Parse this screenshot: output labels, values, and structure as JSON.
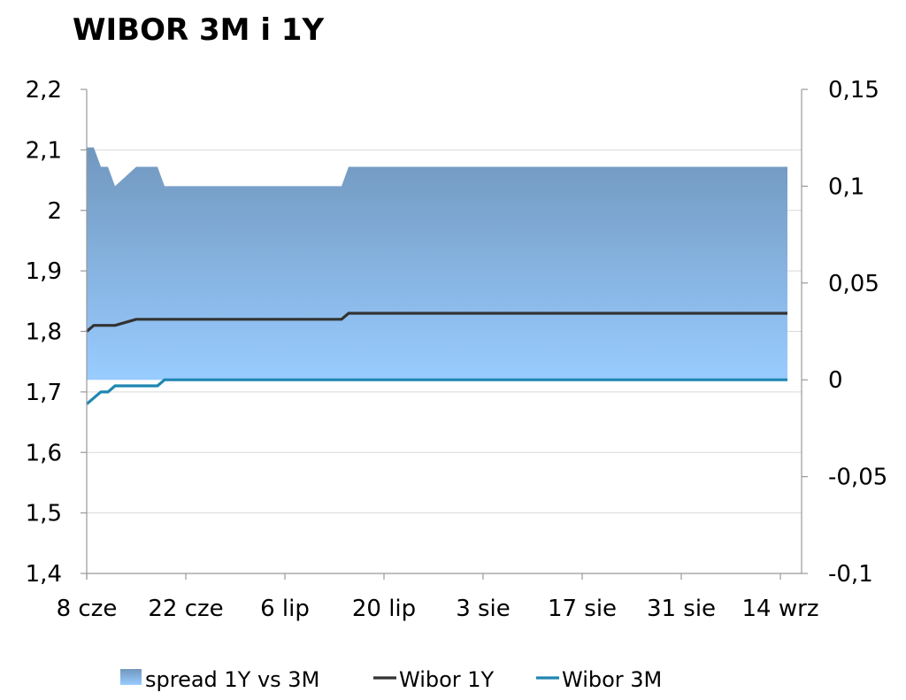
{
  "chart_data": {
    "type": "area+line",
    "title": "WIBOR 3M i 1Y",
    "x_ticks": [
      "8 cze",
      "22 cze",
      "6 lip",
      "20 lip",
      "3 sie",
      "17 sie",
      "31 sie",
      "14 wrz"
    ],
    "y_left": {
      "ticks": [
        "2,2",
        "2,1",
        "2",
        "1,9",
        "1,8",
        "1,7",
        "1,6",
        "1,5",
        "1,4"
      ],
      "range": [
        1.4,
        2.2
      ]
    },
    "y_right": {
      "ticks": [
        "0,15",
        "0,1",
        "0,05",
        "0",
        "-0,05",
        "-0,1"
      ],
      "range": [
        -0.1,
        0.15
      ]
    },
    "grid": "horizontal",
    "legend_position": "bottom",
    "x": [
      "2020-06-08",
      "2020-06-09",
      "2020-06-10",
      "2020-06-11",
      "2020-06-12",
      "2020-06-15",
      "2020-06-16",
      "2020-06-17",
      "2020-06-18",
      "2020-06-19",
      "2020-06-22",
      "2020-06-23",
      "2020-06-24",
      "2020-06-25",
      "2020-06-26",
      "2020-06-29",
      "2020-06-30",
      "2020-07-01",
      "2020-07-02",
      "2020-07-03",
      "2020-07-06",
      "2020-07-07",
      "2020-07-08",
      "2020-07-09",
      "2020-07-10",
      "2020-07-13",
      "2020-07-14",
      "2020-07-15",
      "2020-07-16",
      "2020-07-17",
      "2020-07-20",
      "2020-07-21",
      "2020-07-22",
      "2020-07-23",
      "2020-07-24",
      "2020-07-27",
      "2020-07-28",
      "2020-07-29",
      "2020-07-30",
      "2020-07-31",
      "2020-08-03",
      "2020-08-04",
      "2020-08-05",
      "2020-08-06",
      "2020-08-07",
      "2020-08-10",
      "2020-08-11",
      "2020-08-12",
      "2020-08-13",
      "2020-08-14",
      "2020-08-17",
      "2020-08-18",
      "2020-08-19",
      "2020-08-20",
      "2020-08-21",
      "2020-08-24",
      "2020-08-25",
      "2020-08-26",
      "2020-08-27",
      "2020-08-28",
      "2020-08-31",
      "2020-09-01",
      "2020-09-02",
      "2020-09-03",
      "2020-09-04",
      "2020-09-07",
      "2020-09-08",
      "2020-09-09",
      "2020-09-10",
      "2020-09-11",
      "2020-09-14",
      "2020-09-15"
    ],
    "series": [
      {
        "name": "spread 1Y vs 3M",
        "type": "area",
        "axis": "right",
        "colors": [
          "#7197be",
          "#99ccff"
        ],
        "values": [
          0.12,
          0.12,
          0.11,
          0.11,
          0.1,
          0.11,
          0.11,
          0.11,
          0.11,
          0.1,
          0.1,
          0.1,
          0.1,
          0.1,
          0.1,
          0.1,
          0.1,
          0.1,
          0.1,
          0.1,
          0.1,
          0.1,
          0.1,
          0.1,
          0.1,
          0.1,
          0.1,
          0.11,
          0.11,
          0.11,
          0.11,
          0.11,
          0.11,
          0.11,
          0.11,
          0.11,
          0.11,
          0.11,
          0.11,
          0.11,
          0.11,
          0.11,
          0.11,
          0.11,
          0.11,
          0.11,
          0.11,
          0.11,
          0.11,
          0.11,
          0.11,
          0.11,
          0.11,
          0.11,
          0.11,
          0.11,
          0.11,
          0.11,
          0.11,
          0.11,
          0.11,
          0.11,
          0.11,
          0.11,
          0.11,
          0.11,
          0.11,
          0.11,
          0.11,
          0.11,
          0.11,
          0.11
        ]
      },
      {
        "name": "Wibor 1Y",
        "type": "line",
        "axis": "left",
        "color": "#333333",
        "values": [
          1.8,
          1.81,
          1.81,
          1.81,
          1.81,
          1.82,
          1.82,
          1.82,
          1.82,
          1.82,
          1.82,
          1.82,
          1.82,
          1.82,
          1.82,
          1.82,
          1.82,
          1.82,
          1.82,
          1.82,
          1.82,
          1.82,
          1.82,
          1.82,
          1.82,
          1.82,
          1.82,
          1.83,
          1.83,
          1.83,
          1.83,
          1.83,
          1.83,
          1.83,
          1.83,
          1.83,
          1.83,
          1.83,
          1.83,
          1.83,
          1.83,
          1.83,
          1.83,
          1.83,
          1.83,
          1.83,
          1.83,
          1.83,
          1.83,
          1.83,
          1.83,
          1.83,
          1.83,
          1.83,
          1.83,
          1.83,
          1.83,
          1.83,
          1.83,
          1.83,
          1.83,
          1.83,
          1.83,
          1.83,
          1.83,
          1.83,
          1.83,
          1.83,
          1.83,
          1.83,
          1.83,
          1.83
        ]
      },
      {
        "name": "Wibor 3M",
        "type": "line",
        "axis": "left",
        "color": "#1f86b2",
        "values": [
          1.68,
          1.69,
          1.7,
          1.7,
          1.71,
          1.71,
          1.71,
          1.71,
          1.71,
          1.72,
          1.72,
          1.72,
          1.72,
          1.72,
          1.72,
          1.72,
          1.72,
          1.72,
          1.72,
          1.72,
          1.72,
          1.72,
          1.72,
          1.72,
          1.72,
          1.72,
          1.72,
          1.72,
          1.72,
          1.72,
          1.72,
          1.72,
          1.72,
          1.72,
          1.72,
          1.72,
          1.72,
          1.72,
          1.72,
          1.72,
          1.72,
          1.72,
          1.72,
          1.72,
          1.72,
          1.72,
          1.72,
          1.72,
          1.72,
          1.72,
          1.72,
          1.72,
          1.72,
          1.72,
          1.72,
          1.72,
          1.72,
          1.72,
          1.72,
          1.72,
          1.72,
          1.72,
          1.72,
          1.72,
          1.72,
          1.72,
          1.72,
          1.72,
          1.72,
          1.72,
          1.72,
          1.72
        ]
      }
    ]
  }
}
